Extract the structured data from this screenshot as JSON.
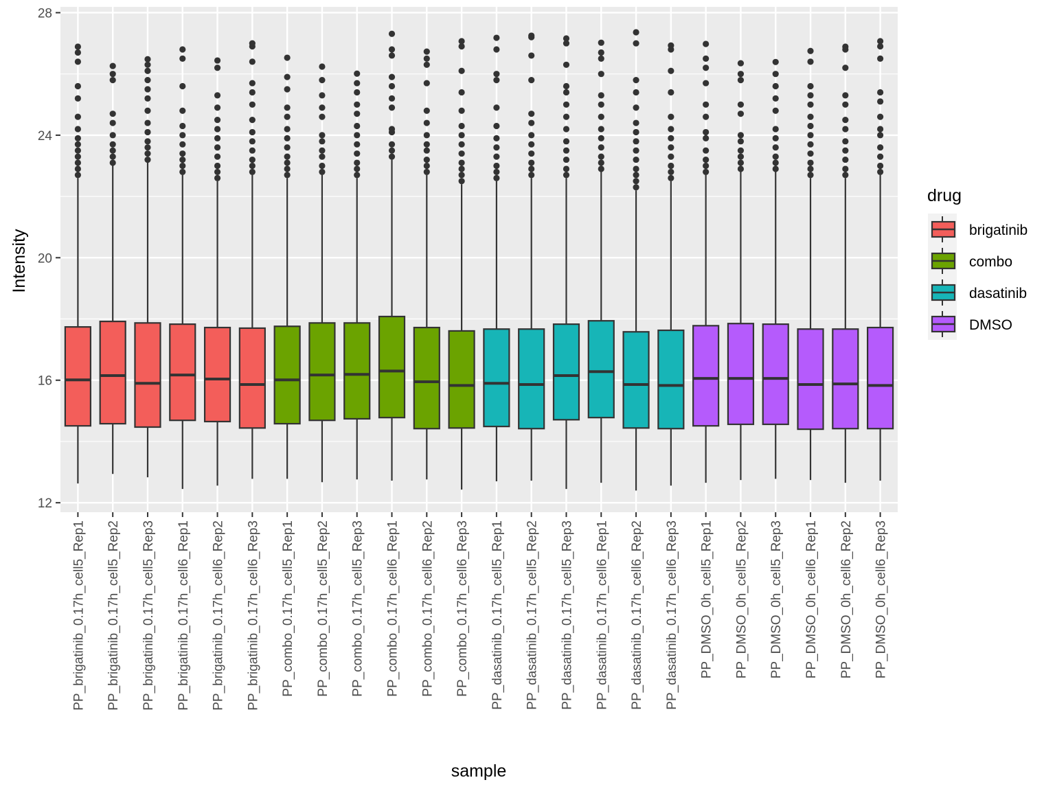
{
  "chart_data": {
    "type": "boxplot",
    "title": "",
    "xlabel": "sample",
    "ylabel": "Intensity",
    "ylim": [
      11.69,
      28.19
    ],
    "yticks": [
      12,
      16,
      20,
      24,
      28
    ],
    "yminor": [
      14,
      18,
      22,
      26
    ],
    "grid": true,
    "legend": {
      "title": "drug",
      "position": "right",
      "entries": [
        {
          "label": "brigatinib",
          "color": "#F8766D"
        },
        {
          "label": "combo",
          "color": "#7CAE00"
        },
        {
          "label": "dasatinib",
          "color": "#00BFC4"
        },
        {
          "label": "DMSO",
          "color": "#C77CFF"
        }
      ]
    },
    "colors": {
      "brigatinib": "#F35E5A",
      "combo": "#6BA300",
      "dasatinib": "#17B5B7",
      "DMSO": "#B55BFC"
    },
    "boxes": [
      {
        "sample": "PP_brigatinib_0.17h_cell5_Rep1",
        "drug": "brigatinib",
        "low": 12.63,
        "q1": 14.51,
        "median": 16.01,
        "q3": 17.74,
        "high": 22.6,
        "outliers": [
          22.7,
          22.9,
          23.1,
          23.3,
          23.5,
          23.7,
          23.9,
          24.2,
          24.6,
          25.2,
          25.6,
          26.4,
          26.7,
          26.89
        ]
      },
      {
        "sample": "PP_brigatinib_0.17h_cell5_Rep2",
        "drug": "brigatinib",
        "low": 12.94,
        "q1": 14.58,
        "median": 16.15,
        "q3": 17.92,
        "high": 23.0,
        "outliers": [
          23.1,
          23.3,
          23.5,
          23.7,
          24.0,
          24.4,
          24.7,
          25.8,
          26.0,
          26.26
        ]
      },
      {
        "sample": "PP_brigatinib_0.17h_cell5_Rep3",
        "drug": "brigatinib",
        "low": 12.83,
        "q1": 14.47,
        "median": 15.9,
        "q3": 17.87,
        "high": 23.1,
        "outliers": [
          23.2,
          23.4,
          23.6,
          23.8,
          24.1,
          24.4,
          24.8,
          25.2,
          25.5,
          25.8,
          26.1,
          26.3,
          26.48
        ]
      },
      {
        "sample": "PP_brigatinib_0.17h_cell6_Rep1",
        "drug": "brigatinib",
        "low": 12.45,
        "q1": 14.69,
        "median": 16.17,
        "q3": 17.83,
        "high": 22.7,
        "outliers": [
          22.8,
          23.0,
          23.2,
          23.4,
          23.7,
          24.0,
          24.3,
          24.8,
          25.6,
          26.5,
          26.8
        ]
      },
      {
        "sample": "PP_brigatinib_0.17h_cell6_Rep2",
        "drug": "brigatinib",
        "low": 12.56,
        "q1": 14.65,
        "median": 16.04,
        "q3": 17.72,
        "high": 22.5,
        "outliers": [
          22.6,
          22.8,
          23.0,
          23.3,
          23.6,
          23.9,
          24.2,
          24.5,
          24.9,
          25.3,
          26.2,
          26.44
        ]
      },
      {
        "sample": "PP_brigatinib_0.17h_cell6_Rep3",
        "drug": "brigatinib",
        "low": 12.78,
        "q1": 14.44,
        "median": 15.86,
        "q3": 17.7,
        "high": 22.7,
        "outliers": [
          22.8,
          23.0,
          23.2,
          23.5,
          23.8,
          24.1,
          24.5,
          25.0,
          25.4,
          25.7,
          26.4,
          26.9,
          27.0
        ]
      },
      {
        "sample": "PP_combo_0.17h_cell5_Rep1",
        "drug": "combo",
        "low": 12.78,
        "q1": 14.58,
        "median": 16.01,
        "q3": 17.76,
        "high": 22.6,
        "outliers": [
          22.7,
          22.9,
          23.1,
          23.3,
          23.6,
          23.9,
          24.2,
          24.6,
          24.9,
          25.5,
          25.9,
          26.53
        ]
      },
      {
        "sample": "PP_combo_0.17h_cell5_Rep2",
        "drug": "combo",
        "low": 12.67,
        "q1": 14.69,
        "median": 16.17,
        "q3": 17.87,
        "high": 22.7,
        "outliers": [
          22.8,
          23.0,
          23.3,
          23.5,
          23.8,
          24.0,
          24.6,
          24.9,
          25.3,
          25.8,
          26.24
        ]
      },
      {
        "sample": "PP_combo_0.17h_cell5_Rep3",
        "drug": "combo",
        "low": 12.76,
        "q1": 14.74,
        "median": 16.19,
        "q3": 17.87,
        "high": 22.6,
        "outliers": [
          22.7,
          22.9,
          23.1,
          23.4,
          23.7,
          24.0,
          24.3,
          24.7,
          25.0,
          25.4,
          25.7,
          26.01
        ]
      },
      {
        "sample": "PP_combo_0.17h_cell6_Rep1",
        "drug": "combo",
        "low": 12.72,
        "q1": 14.78,
        "median": 16.3,
        "q3": 18.08,
        "high": 23.2,
        "outliers": [
          23.3,
          23.5,
          23.7,
          24.1,
          24.2,
          24.9,
          25.2,
          25.6,
          25.9,
          26.6,
          26.8,
          27.31
        ]
      },
      {
        "sample": "PP_combo_0.17h_cell6_Rep2",
        "drug": "combo",
        "low": 12.76,
        "q1": 14.42,
        "median": 15.95,
        "q3": 17.72,
        "high": 22.7,
        "outliers": [
          22.8,
          23.0,
          23.2,
          23.5,
          23.7,
          24.0,
          24.4,
          24.8,
          25.7,
          26.3,
          26.5,
          26.73
        ]
      },
      {
        "sample": "PP_combo_0.17h_cell6_Rep3",
        "drug": "combo",
        "low": 12.43,
        "q1": 14.44,
        "median": 15.83,
        "q3": 17.61,
        "high": 22.4,
        "outliers": [
          22.5,
          22.7,
          22.9,
          23.1,
          23.4,
          23.7,
          24.0,
          24.3,
          24.8,
          25.4,
          26.1,
          26.9,
          27.07
        ]
      },
      {
        "sample": "PP_dasatinib_0.17h_cell5_Rep1",
        "drug": "dasatinib",
        "low": 12.7,
        "q1": 14.49,
        "median": 15.9,
        "q3": 17.67,
        "high": 22.5,
        "outliers": [
          22.6,
          22.8,
          23.0,
          23.3,
          23.6,
          23.9,
          24.3,
          24.9,
          25.8,
          26.0,
          26.8,
          27.18
        ]
      },
      {
        "sample": "PP_dasatinib_0.17h_cell5_Rep2",
        "drug": "dasatinib",
        "low": 12.72,
        "q1": 14.42,
        "median": 15.86,
        "q3": 17.67,
        "high": 22.6,
        "outliers": [
          22.7,
          22.9,
          23.1,
          23.4,
          23.7,
          24.0,
          24.4,
          24.7,
          25.8,
          26.6,
          27.2,
          27.25
        ]
      },
      {
        "sample": "PP_dasatinib_0.17h_cell5_Rep3",
        "drug": "dasatinib",
        "low": 12.45,
        "q1": 14.71,
        "median": 16.15,
        "q3": 17.83,
        "high": 22.6,
        "outliers": [
          22.7,
          22.9,
          23.2,
          23.5,
          23.8,
          24.2,
          24.6,
          25.0,
          25.4,
          25.6,
          26.3,
          27.0,
          27.16
        ]
      },
      {
        "sample": "PP_dasatinib_0.17h_cell6_Rep1",
        "drug": "dasatinib",
        "low": 12.65,
        "q1": 14.78,
        "median": 16.28,
        "q3": 17.94,
        "high": 22.8,
        "outliers": [
          22.9,
          23.1,
          23.3,
          23.6,
          23.9,
          24.2,
          24.6,
          25.0,
          25.3,
          26.0,
          26.5,
          26.7,
          27.02
        ]
      },
      {
        "sample": "PP_dasatinib_0.17h_cell6_Rep2",
        "drug": "dasatinib",
        "low": 12.4,
        "q1": 14.44,
        "median": 15.86,
        "q3": 17.58,
        "high": 22.2,
        "outliers": [
          22.3,
          22.5,
          22.7,
          22.9,
          23.2,
          23.5,
          23.8,
          24.1,
          24.4,
          24.9,
          25.4,
          25.8,
          27.0,
          27.36
        ]
      },
      {
        "sample": "PP_dasatinib_0.17h_cell6_Rep3",
        "drug": "dasatinib",
        "low": 12.56,
        "q1": 14.42,
        "median": 15.83,
        "q3": 17.63,
        "high": 22.5,
        "outliers": [
          22.6,
          22.8,
          23.0,
          23.3,
          23.6,
          23.9,
          24.2,
          24.6,
          25.4,
          26.1,
          26.8,
          26.93
        ]
      },
      {
        "sample": "PP_DMSO_0h_cell5_Rep1",
        "drug": "DMSO",
        "low": 12.65,
        "q1": 14.51,
        "median": 16.06,
        "q3": 17.78,
        "high": 22.7,
        "outliers": [
          22.8,
          23.0,
          23.2,
          23.5,
          23.9,
          24.1,
          24.6,
          25.0,
          25.7,
          26.2,
          26.5,
          26.98
        ]
      },
      {
        "sample": "PP_DMSO_0h_cell5_Rep2",
        "drug": "DMSO",
        "low": 12.74,
        "q1": 14.56,
        "median": 16.06,
        "q3": 17.85,
        "high": 22.8,
        "outliers": [
          22.9,
          23.1,
          23.3,
          23.5,
          23.8,
          24.0,
          24.7,
          25.0,
          25.8,
          26.0,
          26.35
        ]
      },
      {
        "sample": "PP_DMSO_0h_cell5_Rep3",
        "drug": "DMSO",
        "low": 12.78,
        "q1": 14.56,
        "median": 16.06,
        "q3": 17.83,
        "high": 22.8,
        "outliers": [
          22.9,
          23.1,
          23.3,
          23.6,
          23.9,
          24.2,
          24.8,
          25.2,
          25.6,
          26.0,
          26.39
        ]
      },
      {
        "sample": "PP_DMSO_0h_cell6_Rep1",
        "drug": "DMSO",
        "low": 12.74,
        "q1": 14.4,
        "median": 15.86,
        "q3": 17.67,
        "high": 22.6,
        "outliers": [
          22.7,
          22.9,
          23.1,
          23.4,
          23.7,
          24.0,
          24.3,
          24.6,
          25.0,
          25.3,
          25.6,
          26.4,
          26.75
        ]
      },
      {
        "sample": "PP_DMSO_0h_cell6_Rep2",
        "drug": "DMSO",
        "low": 12.65,
        "q1": 14.42,
        "median": 15.88,
        "q3": 17.67,
        "high": 22.6,
        "outliers": [
          22.7,
          22.9,
          23.2,
          23.5,
          23.8,
          24.2,
          24.5,
          25.0,
          25.3,
          26.2,
          26.8,
          26.89
        ]
      },
      {
        "sample": "PP_DMSO_0h_cell6_Rep3",
        "drug": "DMSO",
        "low": 12.72,
        "q1": 14.42,
        "median": 15.83,
        "q3": 17.72,
        "high": 22.7,
        "outliers": [
          22.8,
          23.0,
          23.3,
          23.6,
          24.0,
          24.2,
          24.6,
          25.1,
          25.4,
          26.5,
          26.9,
          27.07
        ]
      }
    ]
  }
}
